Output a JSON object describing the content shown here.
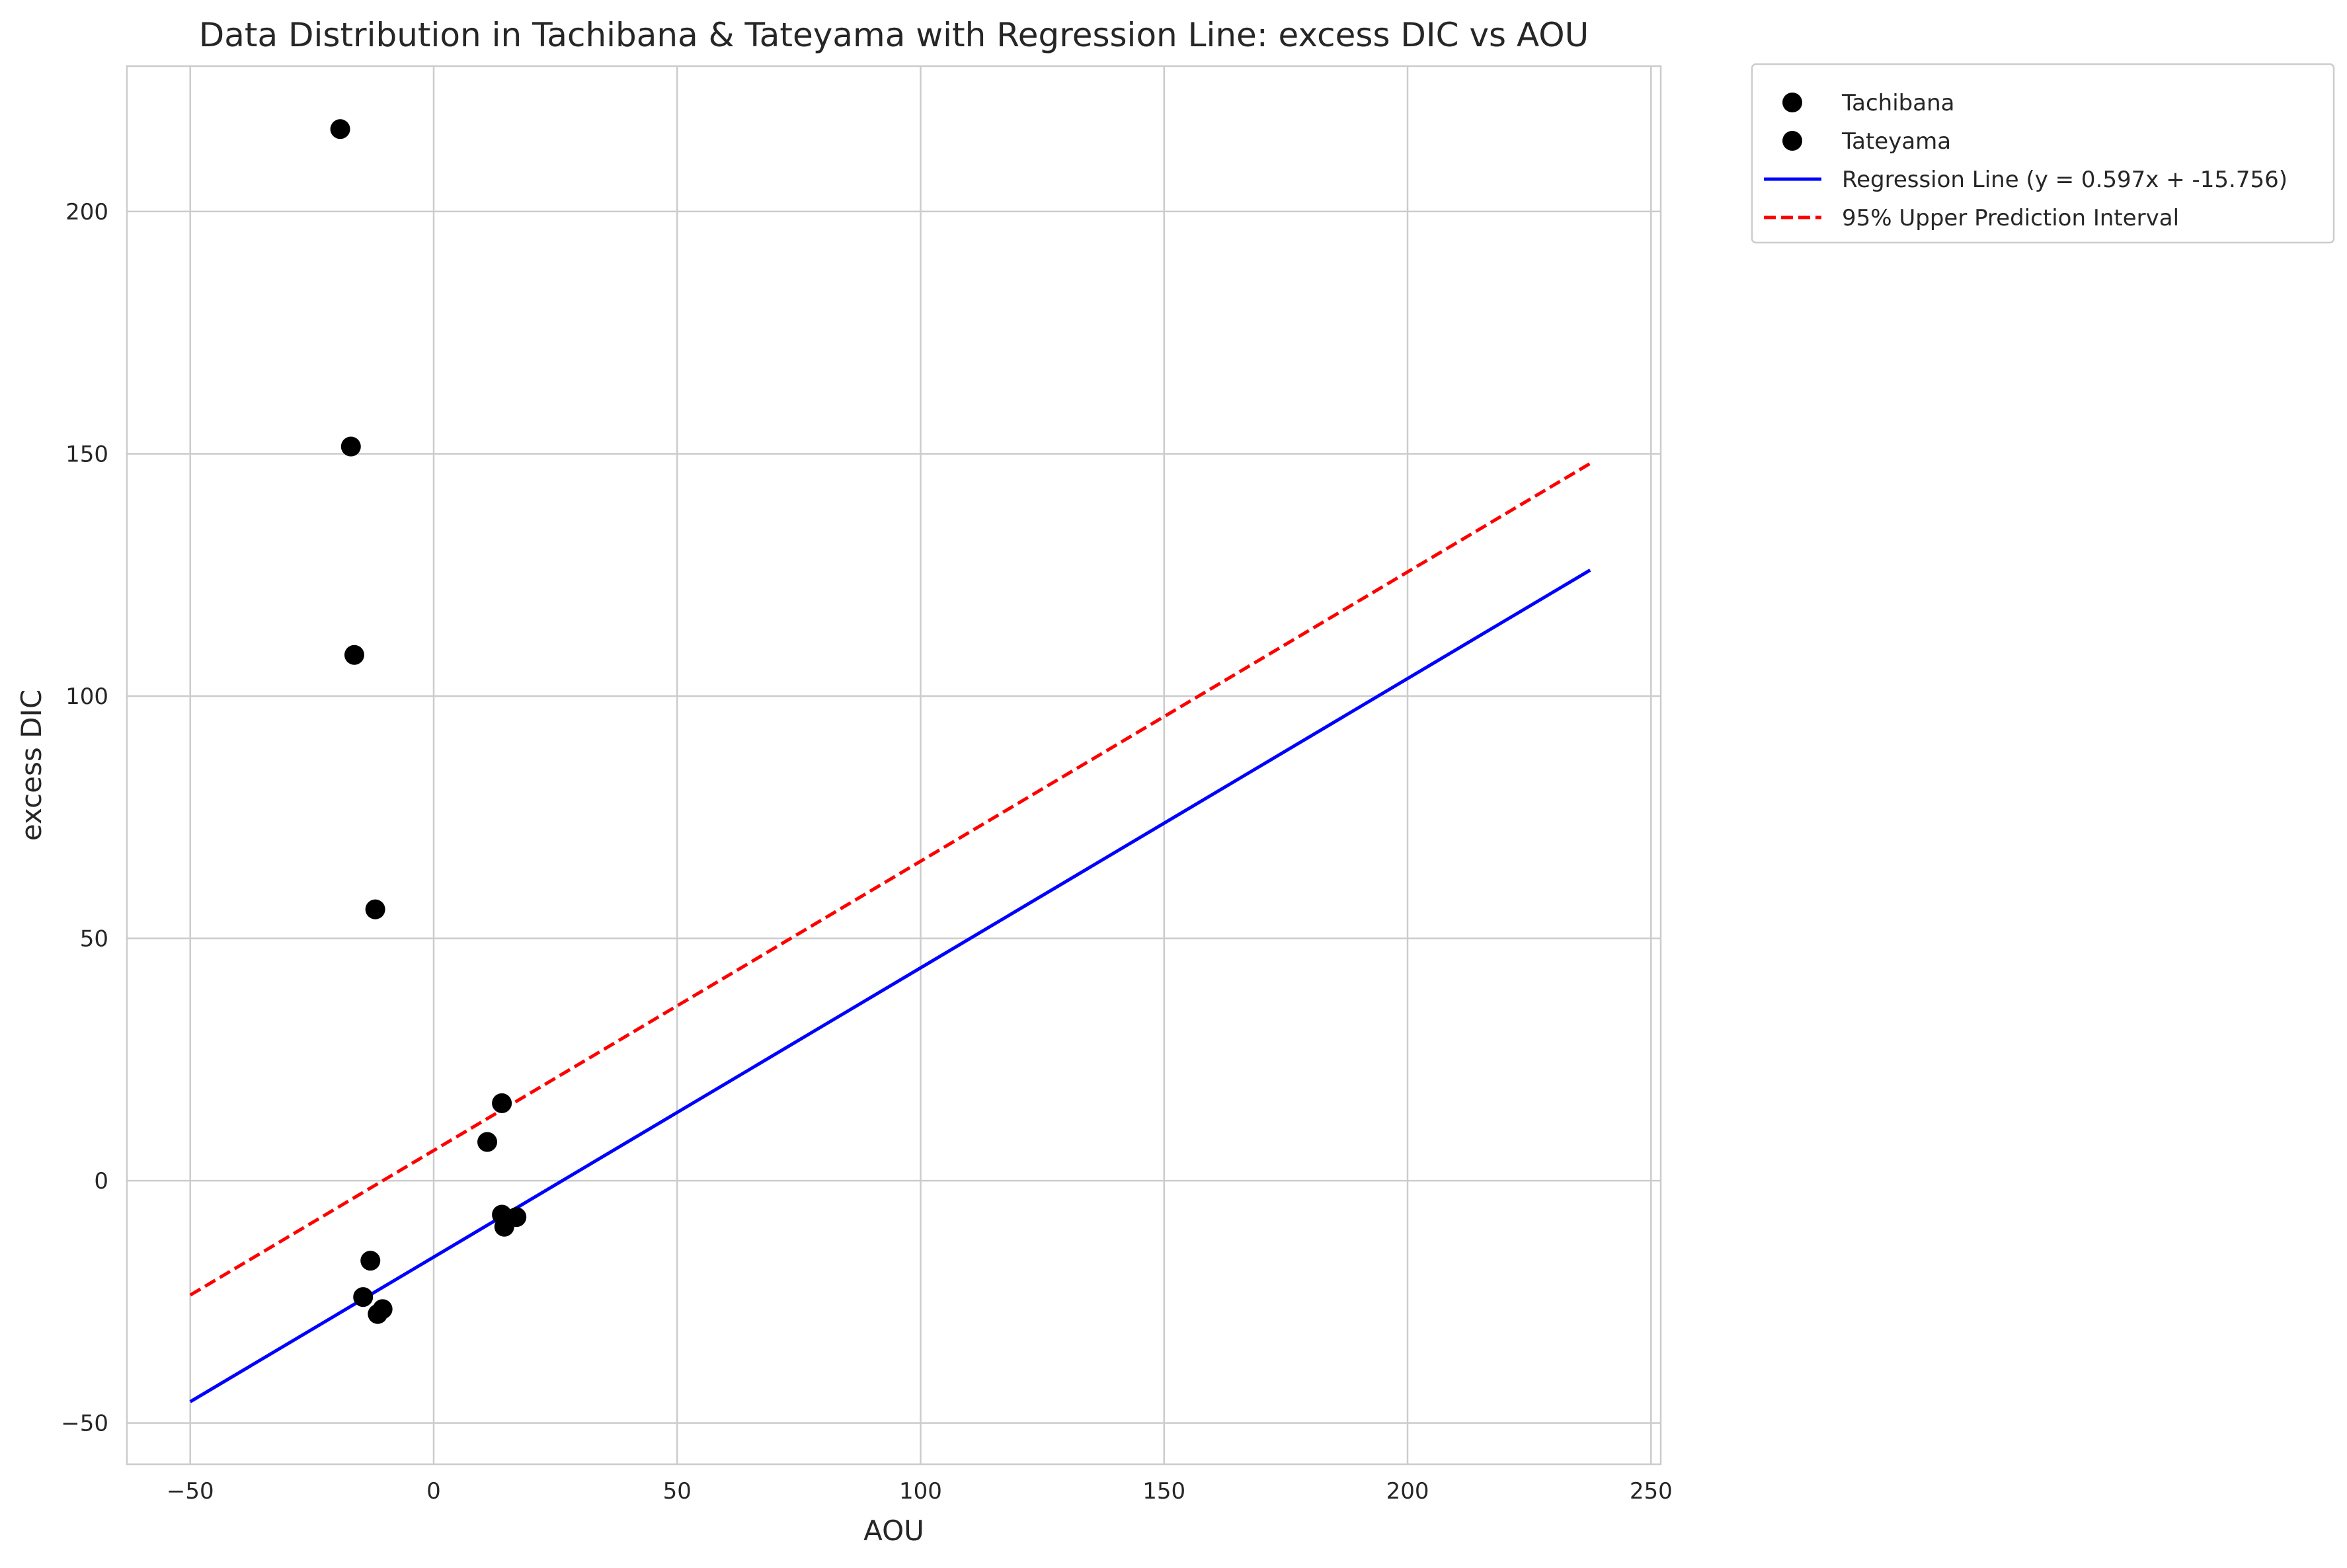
{
  "chart_data": {
    "type": "scatter",
    "title": "Data Distribution in Tachibana & Tateyama with Regression Line: excess DIC vs AOU",
    "xlabel": "AOU",
    "ylabel": "excess DIC",
    "xlim": [
      -63,
      252
    ],
    "ylim": [
      -58.5,
      230
    ],
    "xticks": [
      -50,
      0,
      50,
      100,
      150,
      200,
      250
    ],
    "yticks": [
      -50,
      0,
      50,
      100,
      150,
      200
    ],
    "xtick_labels": [
      "−50",
      "0",
      "50",
      "100",
      "150",
      "200",
      "250"
    ],
    "ytick_labels": [
      "−50",
      "0",
      "50",
      "100",
      "150",
      "200"
    ],
    "grid": true,
    "legend_position": "outside-top-right",
    "series": [
      {
        "name": "Tachibana",
        "kind": "scatter",
        "color": "#000000",
        "points": [
          [
            -19.2,
            217
          ],
          [
            -17,
            151.5
          ],
          [
            -16.3,
            108.5
          ],
          [
            -12,
            56
          ]
        ]
      },
      {
        "name": "Tateyama",
        "kind": "scatter",
        "color": "#000000",
        "points": [
          [
            14,
            16
          ],
          [
            11,
            8
          ],
          [
            14,
            -7
          ],
          [
            17,
            -7.5
          ],
          [
            14.5,
            -9.5
          ],
          [
            -13,
            -16.5
          ],
          [
            -14.5,
            -24
          ],
          [
            -10.5,
            -26.5
          ],
          [
            -11.5,
            -27.5
          ]
        ]
      },
      {
        "name": "Regression Line (y = 0.597x + -15.756)",
        "kind": "line",
        "color": "#0000ff",
        "dash": "solid",
        "points": [
          [
            -50,
            -45.6
          ],
          [
            237.5,
            126.0
          ]
        ]
      },
      {
        "name": "95% Upper Prediction Interval",
        "kind": "line",
        "color": "#ff0000",
        "dash": "dashed",
        "points": [
          [
            -50,
            -23.6
          ],
          [
            237.5,
            148.0
          ]
        ]
      }
    ]
  }
}
